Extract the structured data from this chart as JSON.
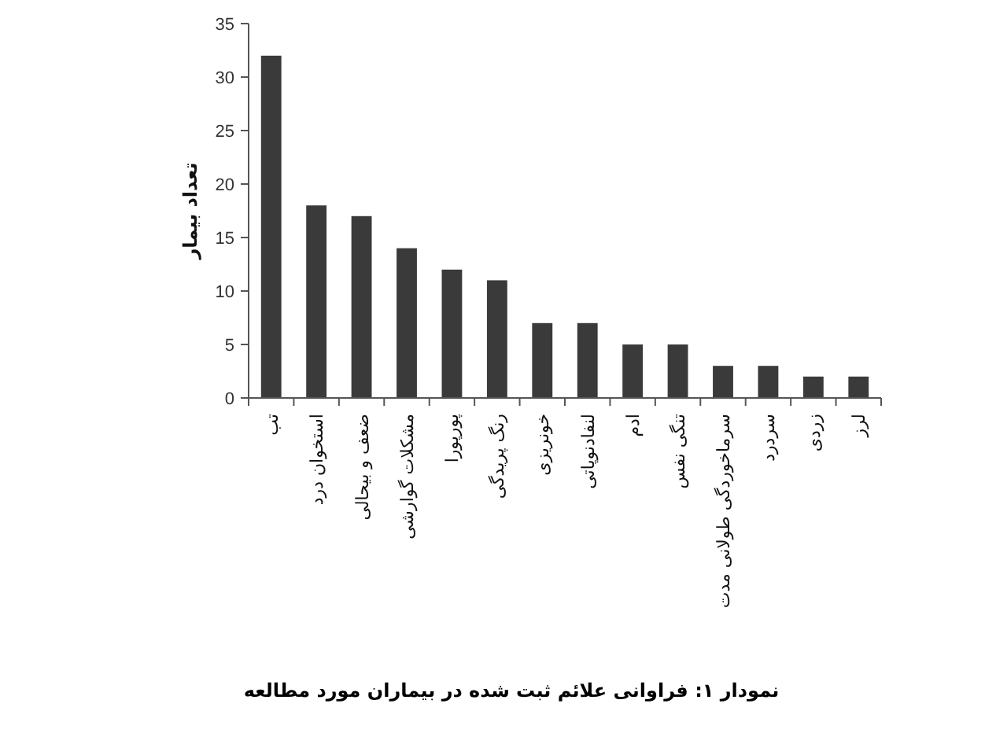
{
  "chart_data": {
    "type": "bar",
    "title": "نمودار ١: فراوانی علائم ثبت شده در بیماران مورد مطالعه",
    "ylabel": "تعداد بیمار",
    "categories": [
      "تب",
      "استخوان درد",
      "ضعف و بیحالی",
      "مشکلات گوارشی",
      "پورپورا",
      "رنگ پریدگی",
      "خونریزی",
      "لنفادنوپاتی",
      "ادم",
      "تنگی نفس",
      "سرماخوردگی طولانی مدت",
      "سردرد",
      "زردی",
      "لرز"
    ],
    "values": [
      32,
      18,
      17,
      14,
      12,
      11,
      7,
      7,
      5,
      5,
      3,
      3,
      2,
      2
    ],
    "color": "#3a3a3a",
    "ylim": [
      0,
      35
    ],
    "yticks": [
      0,
      5,
      10,
      15,
      20,
      25,
      30,
      35
    ]
  }
}
